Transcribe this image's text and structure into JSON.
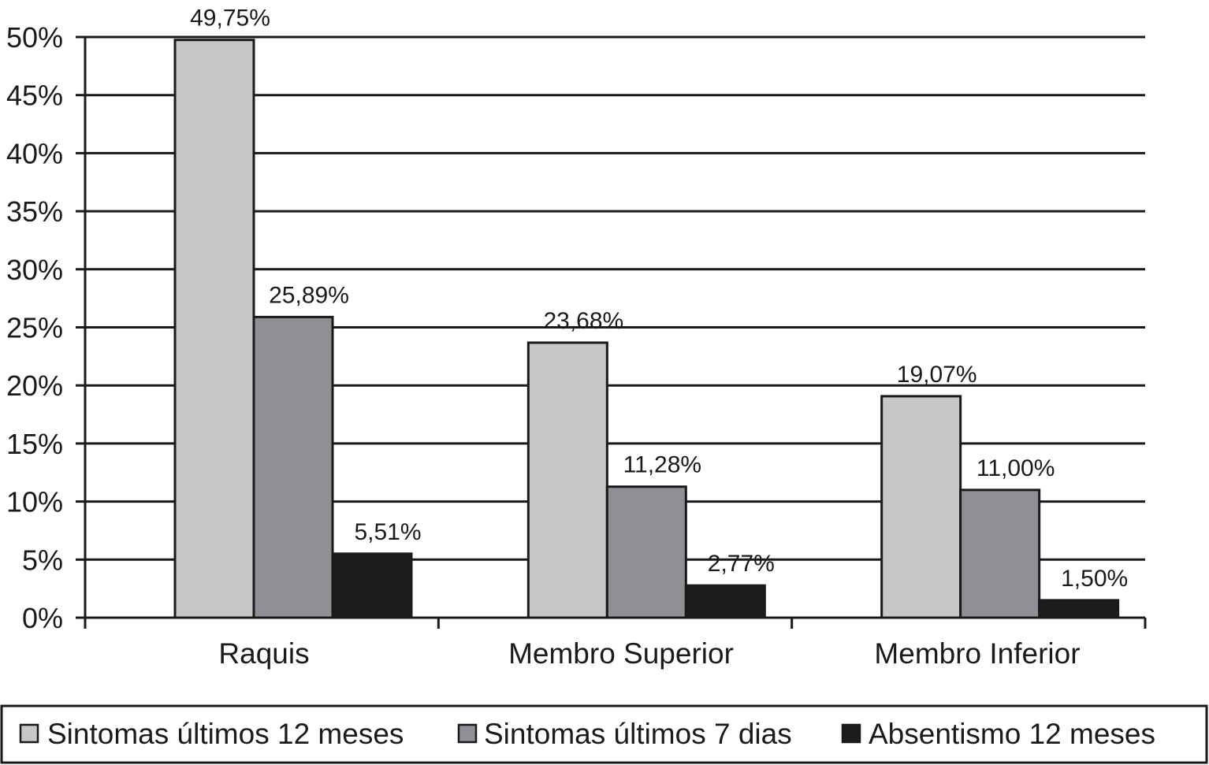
{
  "chart_data": {
    "type": "bar",
    "categories": [
      "Raquis",
      "Membro Superior",
      "Membro Inferior"
    ],
    "series": [
      {
        "name": "Sintomas últimos 12 meses",
        "values": [
          49.75,
          23.68,
          19.07
        ],
        "labels": [
          "49,75%",
          "23,68%",
          "19,07%"
        ],
        "color": "#c6c7c9"
      },
      {
        "name": "Sintomas últimos 7 dias",
        "values": [
          25.89,
          11.28,
          11.0
        ],
        "labels": [
          "25,89%",
          "11,28%",
          "11,00%"
        ],
        "color": "#8f9094"
      },
      {
        "name": "Absentismo 12 meses",
        "values": [
          5.51,
          2.77,
          1.5
        ],
        "labels": [
          "5,51%",
          "2,77%",
          "1,50%"
        ],
        "color": "#1d1b1c"
      }
    ],
    "ylim": [
      0,
      50
    ],
    "yticks": [
      0,
      5,
      10,
      15,
      20,
      25,
      30,
      35,
      40,
      45,
      50
    ],
    "ytick_labels": [
      "0%",
      "5%",
      "10%",
      "15%",
      "20%",
      "25%",
      "30%",
      "35%",
      "40%",
      "45%",
      "50%"
    ],
    "grid": true,
    "legend_position": "bottom"
  }
}
